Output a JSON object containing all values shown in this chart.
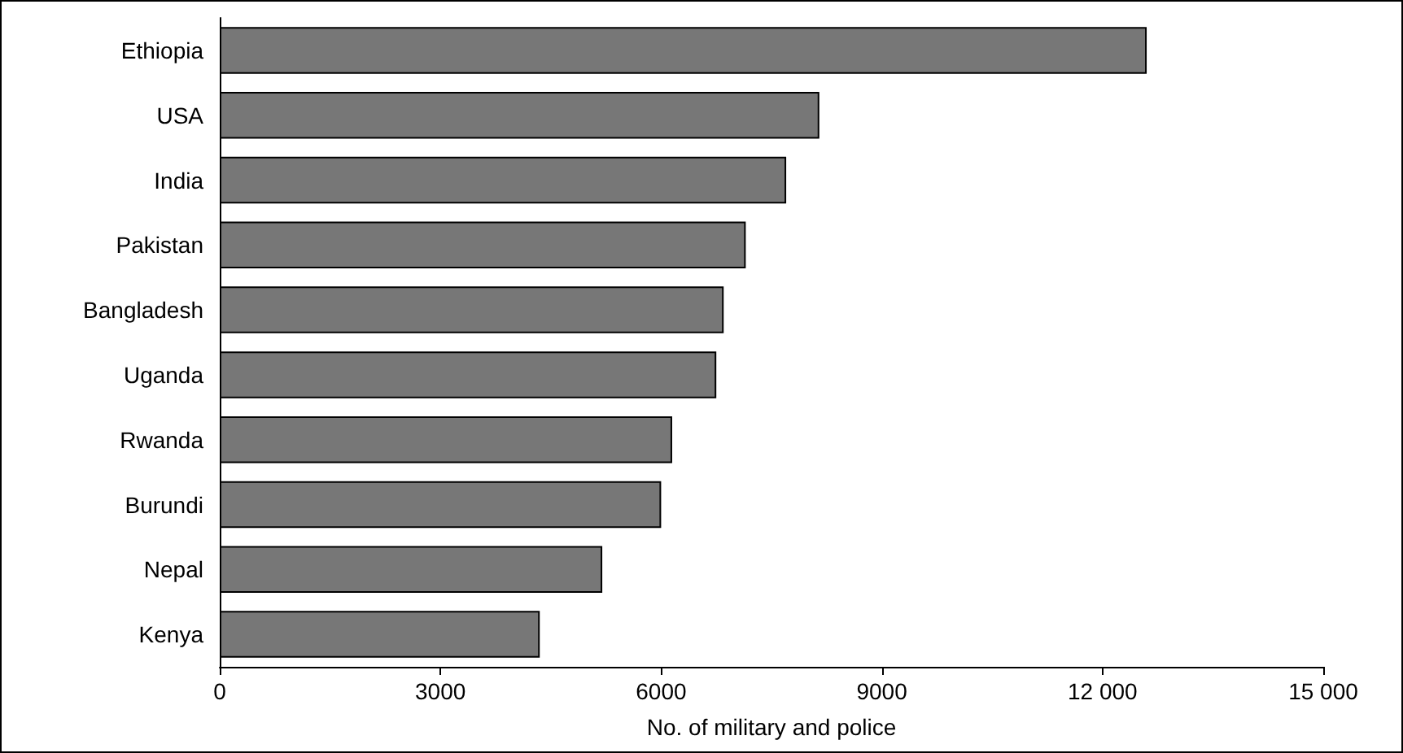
{
  "chart_data": {
    "type": "bar",
    "orientation": "horizontal",
    "xlabel": "No. of military and police",
    "categories": [
      "Ethiopia",
      "USA",
      "India",
      "Pakistan",
      "Bangladesh",
      "Uganda",
      "Rwanda",
      "Burundi",
      "Nepal",
      "Kenya"
    ],
    "values": [
      12600,
      8150,
      7700,
      7150,
      6850,
      6750,
      6150,
      6000,
      5200,
      4350
    ],
    "color": "#777777",
    "xlim": [
      0,
      15000
    ],
    "xticks": [
      0,
      3000,
      6000,
      9000,
      {
        "value": 12000,
        "label": "12 000"
      },
      {
        "value": 15000,
        "label": "15 000"
      }
    ],
    "grid": false
  }
}
